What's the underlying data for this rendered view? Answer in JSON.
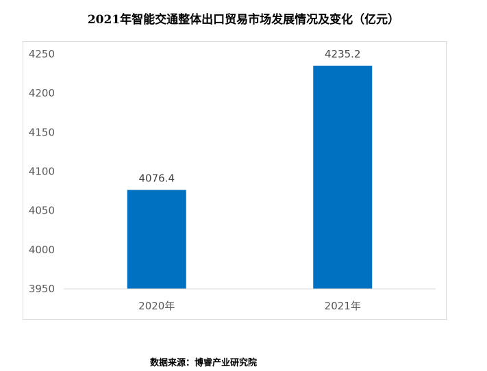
{
  "chart_data": {
    "type": "bar",
    "title": "2021年智能交通整体出口贸易市场发展情况及变化（亿元）",
    "categories": [
      "2020年",
      "2021年"
    ],
    "values": [
      4076.4,
      4235.2
    ],
    "data_labels": [
      "4076.4",
      "4235.2"
    ],
    "ylim": [
      3950,
      4250
    ],
    "yticks": [
      3950,
      4000,
      4050,
      4100,
      4150,
      4200,
      4250
    ],
    "xlabel": "",
    "ylabel": "",
    "grid": false,
    "bar_color": "#0070c0"
  },
  "source": "数据来源：博睿产业研究院"
}
